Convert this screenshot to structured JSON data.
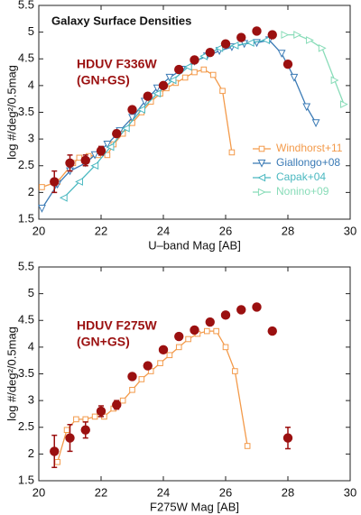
{
  "chart_data": [
    {
      "type": "line",
      "title": "Galaxy Surface Densities",
      "annotations": [
        "HDUV F336W",
        "(GN+GS)"
      ],
      "xlabel": "U–band Mag [AB]",
      "ylabel": "log #/deg²/0.5mag",
      "xlim": [
        20,
        30
      ],
      "ylim": [
        1.5,
        5.5
      ],
      "xticks": [
        20,
        22,
        24,
        26,
        28,
        30
      ],
      "yticks": [
        1.5,
        2,
        2.5,
        3,
        3.5,
        4,
        4.5,
        5,
        5.5
      ],
      "legend": "lower right",
      "series": [
        {
          "name": "Windhorst+11",
          "color": "#f39a4a",
          "marker": "square",
          "line": true,
          "x": [
            20.1,
            20.6,
            21.1,
            21.3,
            21.6,
            21.9,
            22.2,
            22.4,
            22.7,
            23.0,
            23.3,
            23.6,
            23.9,
            24.1,
            24.4,
            24.7,
            25.0,
            25.3,
            25.6,
            25.9,
            26.2
          ],
          "values": [
            2.1,
            2.2,
            2.55,
            2.65,
            2.68,
            2.7,
            2.7,
            2.9,
            3.1,
            3.3,
            3.5,
            3.7,
            3.85,
            3.95,
            4.05,
            4.15,
            4.25,
            4.3,
            4.2,
            3.9,
            2.75
          ]
        },
        {
          "name": "Giallongo+08",
          "color": "#3a7ab5",
          "marker": "down",
          "line": true,
          "x": [
            20.1,
            20.6,
            21.0,
            21.5,
            21.8,
            22.2,
            22.6,
            23.0,
            23.4,
            23.8,
            24.2,
            24.6,
            25.0,
            25.4,
            25.8,
            26.2,
            26.6,
            27.0,
            27.4,
            27.8,
            28.2,
            28.6,
            28.9
          ],
          "values": [
            1.7,
            2.15,
            2.4,
            2.55,
            2.7,
            2.9,
            3.15,
            3.4,
            3.7,
            3.95,
            4.15,
            4.3,
            4.45,
            4.55,
            4.65,
            4.72,
            4.78,
            4.8,
            4.85,
            4.6,
            4.15,
            3.6,
            3.3
          ]
        },
        {
          "name": "Capak+04",
          "color": "#4ab8c0",
          "marker": "left",
          "line": true,
          "x": [
            20.8,
            21.3,
            21.8,
            22.3,
            22.8,
            23.3,
            23.8,
            24.3,
            24.8,
            25.3,
            25.8,
            26.3,
            26.8,
            27.3
          ],
          "values": [
            1.9,
            2.2,
            2.5,
            2.85,
            3.2,
            3.55,
            3.85,
            4.1,
            4.35,
            4.55,
            4.7,
            4.75,
            4.8,
            4.85
          ]
        },
        {
          "name": "Nonino+09",
          "color": "#88dcb8",
          "marker": "right",
          "line": true,
          "x": [
            27.9,
            28.3,
            28.7,
            29.1,
            29.5,
            29.8
          ],
          "values": [
            4.95,
            4.95,
            4.85,
            4.7,
            4.1,
            3.65
          ]
        },
        {
          "color": "#9b1010",
          "marker": "circle",
          "line": false,
          "x": [
            20.5,
            21,
            21.5,
            22,
            22.5,
            23,
            23.5,
            24,
            24.5,
            25,
            25.5,
            26,
            26.5,
            27,
            27.5,
            28
          ],
          "values": [
            2.2,
            2.55,
            2.6,
            2.78,
            3.1,
            3.55,
            3.8,
            4.0,
            4.3,
            4.48,
            4.62,
            4.78,
            4.9,
            5.02,
            4.95,
            4.4
          ],
          "errors": [
            0.2,
            0.15,
            0.1,
            0.08,
            0.06,
            null,
            null,
            null,
            null,
            null,
            null,
            null,
            null,
            null,
            null,
            null
          ]
        }
      ]
    },
    {
      "type": "line",
      "annotations": [
        "HDUV F275W",
        "(GN+GS)"
      ],
      "xlabel": "F275W Mag [AB]",
      "ylabel": "log #/deg²/0.5mag",
      "xlim": [
        20,
        30
      ],
      "ylim": [
        1.5,
        5.5
      ],
      "xticks": [
        20,
        22,
        24,
        26,
        28,
        30
      ],
      "yticks": [
        1.5,
        2,
        2.5,
        3,
        3.5,
        4,
        4.5,
        5,
        5.5
      ],
      "series": [
        {
          "color": "#f39a4a",
          "marker": "square",
          "line": true,
          "x": [
            20.6,
            20.9,
            21.2,
            21.5,
            21.8,
            22.1,
            22.4,
            22.7,
            23.0,
            23.3,
            23.6,
            23.9,
            24.2,
            24.5,
            24.8,
            25.1,
            25.4,
            25.7,
            26.0,
            26.3,
            26.7
          ],
          "values": [
            1.85,
            2.45,
            2.65,
            2.65,
            2.7,
            2.7,
            2.85,
            3.0,
            3.2,
            3.4,
            3.55,
            3.7,
            3.85,
            4.0,
            4.15,
            4.25,
            4.3,
            4.3,
            4.0,
            3.55,
            2.15
          ]
        },
        {
          "color": "#9b1010",
          "marker": "circle",
          "line": false,
          "x": [
            20.5,
            21,
            21.5,
            22,
            22.5,
            23,
            23.5,
            24,
            24.5,
            25,
            25.5,
            26,
            26.5,
            27,
            27.5,
            28
          ],
          "values": [
            2.05,
            2.3,
            2.45,
            2.8,
            2.92,
            3.45,
            3.65,
            3.95,
            4.2,
            4.32,
            4.47,
            4.6,
            4.7,
            4.75,
            4.3,
            2.3
          ],
          "errors": [
            0.3,
            0.25,
            0.15,
            0.1,
            0.08,
            null,
            null,
            null,
            null,
            null,
            null,
            null,
            null,
            null,
            null,
            0.2
          ]
        }
      ]
    }
  ]
}
